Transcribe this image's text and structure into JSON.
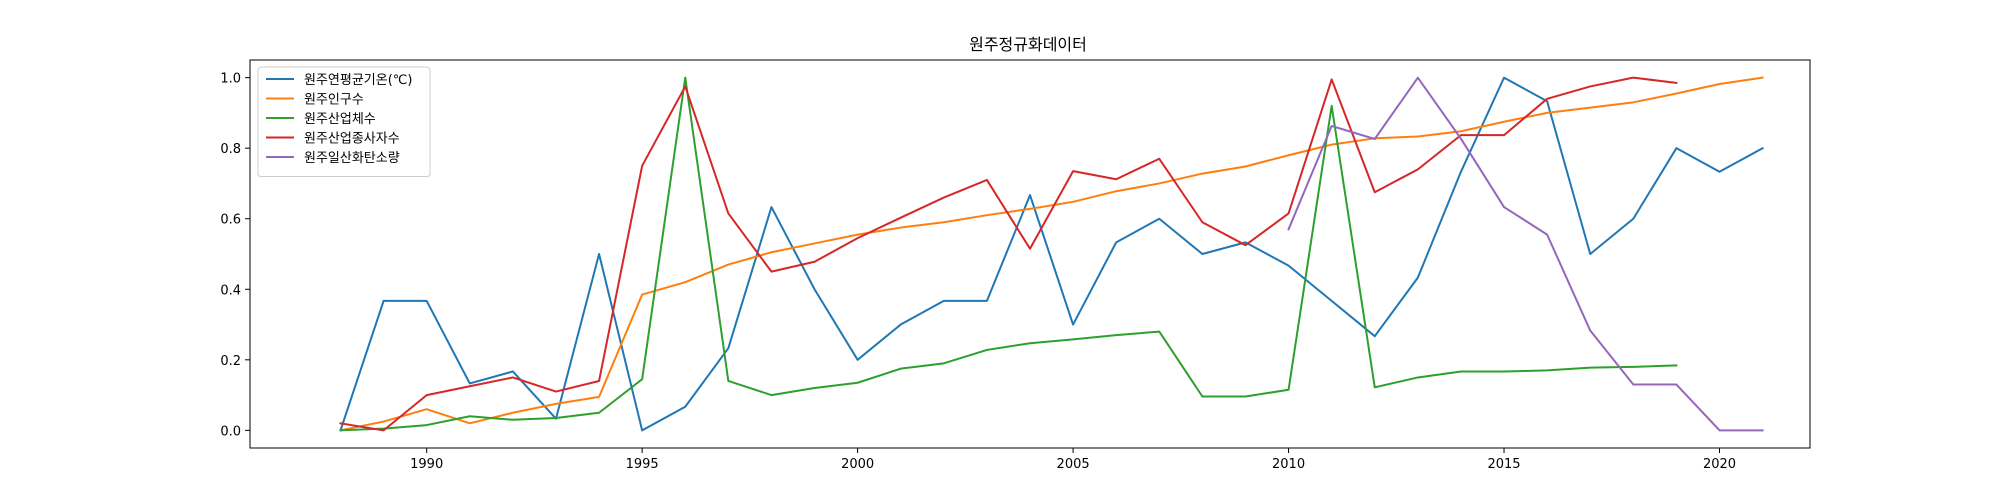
{
  "chart_data": {
    "type": "line",
    "title": "원주정규화데이터",
    "xlabel": "",
    "ylabel": "",
    "xlim": [
      1985.9,
      2022.1
    ],
    "ylim": [
      -0.05,
      1.05
    ],
    "xticks": [
      1990,
      1995,
      2000,
      2005,
      2010,
      2015,
      2020
    ],
    "yticks": [
      0.0,
      0.2,
      0.4,
      0.6,
      0.8,
      1.0
    ],
    "xtick_labels": [
      "1990",
      "1995",
      "2000",
      "2005",
      "2010",
      "2015",
      "2020"
    ],
    "ytick_labels": [
      "0.0",
      "0.2",
      "0.4",
      "0.6",
      "0.8",
      "1.0"
    ],
    "grid": false,
    "legend_position": "top-left",
    "series": [
      {
        "name": "원주연평균기온(℃)",
        "color": "#1f77b4",
        "x": [
          1988,
          1989,
          1990,
          1991,
          1992,
          1993,
          1994,
          1995,
          1996,
          1997,
          1998,
          1999,
          2000,
          2001,
          2002,
          2003,
          2004,
          2005,
          2006,
          2007,
          2008,
          2009,
          2010,
          2011,
          2012,
          2013,
          2014,
          2015,
          2016,
          2017,
          2018,
          2019,
          2020,
          2021
        ],
        "y": [
          0.0,
          0.367,
          0.367,
          0.133,
          0.167,
          0.033,
          0.5,
          0.0,
          0.067,
          0.233,
          0.633,
          0.4,
          0.2,
          0.3,
          0.367,
          0.367,
          0.667,
          0.3,
          0.533,
          0.6,
          0.5,
          0.533,
          0.467,
          0.367,
          0.267,
          0.433,
          0.733,
          1.0,
          0.933,
          0.5,
          0.6,
          0.8,
          0.733,
          0.8
        ]
      },
      {
        "name": "원주인구수",
        "color": "#ff7f0e",
        "x": [
          1988,
          1989,
          1990,
          1991,
          1992,
          1993,
          1994,
          1995,
          1996,
          1997,
          1998,
          1999,
          2000,
          2001,
          2002,
          2003,
          2004,
          2005,
          2006,
          2007,
          2008,
          2009,
          2010,
          2011,
          2012,
          2013,
          2014,
          2015,
          2016,
          2017,
          2018,
          2019,
          2020,
          2021
        ],
        "y": [
          0.0,
          0.025,
          0.06,
          0.02,
          0.05,
          0.075,
          0.095,
          0.385,
          0.42,
          0.47,
          0.505,
          0.53,
          0.555,
          0.575,
          0.59,
          0.61,
          0.628,
          0.648,
          0.678,
          0.7,
          0.728,
          0.748,
          0.78,
          0.81,
          0.828,
          0.833,
          0.848,
          0.875,
          0.9,
          0.915,
          0.93,
          0.955,
          0.982,
          1.0
        ]
      },
      {
        "name": "원주산업체수",
        "color": "#2ca02c",
        "x": [
          1988,
          1989,
          1990,
          1991,
          1992,
          1993,
          1994,
          1995,
          1996,
          1997,
          1998,
          1999,
          2000,
          2001,
          2002,
          2003,
          2004,
          2005,
          2006,
          2007,
          2008,
          2009,
          2010,
          2011,
          2012,
          2013,
          2014,
          2015,
          2016,
          2017,
          2018,
          2019
        ],
        "y": [
          0.0,
          0.005,
          0.015,
          0.04,
          0.03,
          0.035,
          0.05,
          0.145,
          1.0,
          0.14,
          0.1,
          0.12,
          0.135,
          0.175,
          0.19,
          0.228,
          0.247,
          0.258,
          0.27,
          0.28,
          0.096,
          0.096,
          0.115,
          0.92,
          0.122,
          0.15,
          0.167,
          0.167,
          0.17,
          0.178,
          0.18,
          0.184
        ]
      },
      {
        "name": "원주산업종사자수",
        "color": "#d62728",
        "x": [
          1988,
          1989,
          1990,
          1991,
          1992,
          1993,
          1994,
          1995,
          1996,
          1997,
          1998,
          1999,
          2000,
          2001,
          2002,
          2003,
          2004,
          2005,
          2006,
          2007,
          2008,
          2009,
          2010,
          2011,
          2012,
          2013,
          2014,
          2015,
          2016,
          2017,
          2018,
          2019
        ],
        "y": [
          0.02,
          0.0,
          0.1,
          0.125,
          0.15,
          0.11,
          0.14,
          0.75,
          0.975,
          0.615,
          0.45,
          0.478,
          0.545,
          0.603,
          0.66,
          0.71,
          0.515,
          0.735,
          0.712,
          0.77,
          0.59,
          0.525,
          0.615,
          0.995,
          0.675,
          0.74,
          0.837,
          0.837,
          0.94,
          0.975,
          1.0,
          0.985
        ]
      },
      {
        "name": "원주일산화탄소량",
        "color": "#9467bd",
        "x": [
          2010,
          2011,
          2012,
          2013,
          2014,
          2015,
          2016,
          2017,
          2018,
          2019,
          2020,
          2021
        ],
        "y": [
          0.57,
          0.863,
          0.826,
          1.0,
          0.827,
          0.633,
          0.555,
          0.283,
          0.13,
          0.13,
          0.0,
          0.0
        ]
      }
    ]
  }
}
